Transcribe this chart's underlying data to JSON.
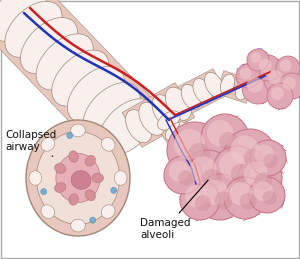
{
  "background_color": "#ffffff",
  "fig_width": 3.0,
  "fig_height": 2.59,
  "dpi": 100,
  "label_collapsed": "Collapsed\nairway",
  "label_damaged": "Damaged\nalveoli",
  "bronchiole_color": "#e8c8bc",
  "bronchiole_ring_white": "#f8f0ec",
  "bronchiole_wall_inner": "#dba898",
  "lumen_color": "#d4909a",
  "lumen_inner": "#e8aab4",
  "blood_red": "#cc2020",
  "blood_blue": "#2233bb",
  "alveoli_wall_color": "#c8788a",
  "alveoli_face_light": "#f0c8cc",
  "alveoli_face_mid": "#e0a8b4",
  "alveoli_face_dark": "#cc8896",
  "capillary_red": "#cc2020",
  "capillary_blue": "#2233bb",
  "text_color": "#111111",
  "font_size": 7.5,
  "border_color": "#a08878"
}
